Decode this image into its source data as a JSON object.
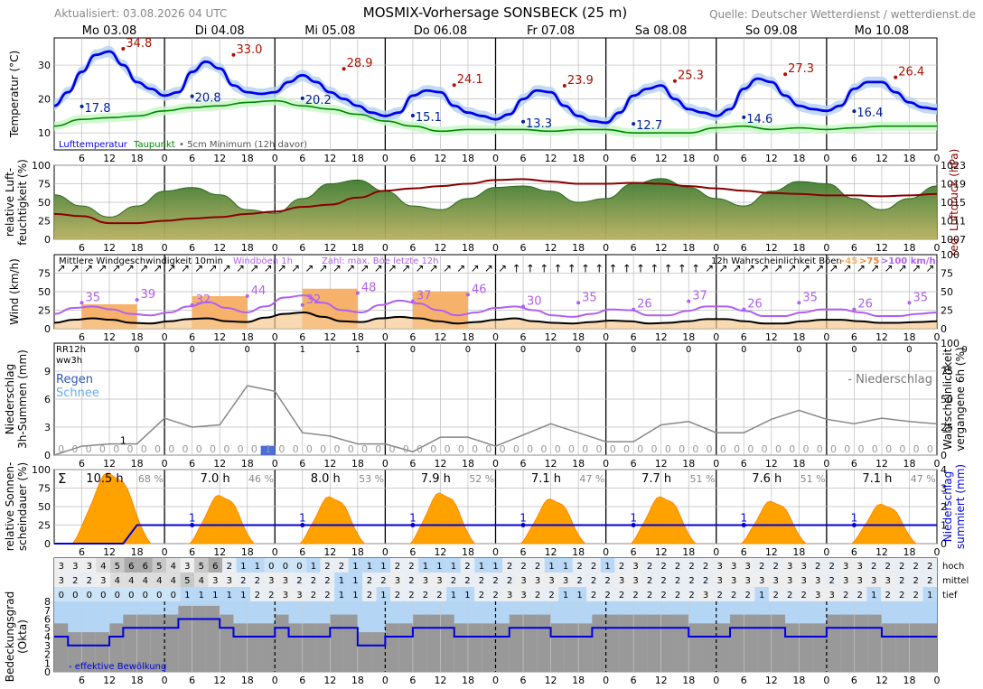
{
  "header": {
    "updated": "Aktualisiert: 03.08.2026 04 UTC",
    "title": "MOSMIX-Vorhersage SONSBECK (25 m)",
    "source": "Quelle: Deutscher Wetterdienst / wetterdienst.de"
  },
  "days": [
    "Mo 03.08",
    "Di 04.08",
    "Mi 05.08",
    "Do 06.08",
    "Fr 07.08",
    "Sa 08.08",
    "So 09.08",
    "Mo 10.08"
  ],
  "hour_ticks": [
    "6",
    "12",
    "18",
    "0"
  ],
  "colors": {
    "temperature": "#0000ee",
    "temperature_band": "#b8d4f2",
    "dewpoint": "#008800",
    "dewpoint_band": "#c8f8c8",
    "max_label": "#aa1100",
    "min_label": "#002299",
    "pressure": "#880000",
    "humidity_fill": "#6a9a3a",
    "wind_mean": "#000000",
    "gust": "#b060f0",
    "gust_max_fill": "#f6b26b",
    "precip_prob": "#888888",
    "sunshine": "#ffa200",
    "cum_precip": "#0000dd",
    "cloud_blue": "#b5d5f5",
    "cloud_gray": "#999999",
    "grid": "#bbbbbb"
  },
  "chart_data": [
    {
      "id": "temperature",
      "type": "line",
      "ylabel": "Temperatur (°C)",
      "ylim": [
        5,
        38
      ],
      "yticks": [
        10,
        20,
        30
      ],
      "legend": [
        "Lufttemperatur",
        "Taupunkt",
        "5cm Minimum (12h davor)"
      ],
      "series": [
        {
          "name": "Lufttemperatur",
          "x_hours": [
            0,
            3,
            6,
            9,
            12,
            15,
            18,
            21,
            24,
            27,
            30,
            33,
            36,
            39,
            42,
            45,
            48,
            51,
            54,
            57,
            60,
            63,
            66,
            69,
            72,
            75,
            78,
            81,
            84,
            87,
            90,
            93,
            96,
            99,
            102,
            105,
            108,
            111,
            114,
            117,
            120,
            123,
            126,
            129,
            132,
            135,
            138,
            141,
            144,
            147,
            150,
            153,
            156,
            159,
            162,
            165,
            168,
            171,
            174,
            177,
            180,
            183,
            186,
            189,
            192
          ],
          "values": [
            18,
            22,
            28,
            33,
            34,
            30,
            25,
            23,
            21,
            22,
            28,
            31,
            29,
            24,
            22,
            21.5,
            22,
            25,
            27,
            25,
            22,
            20,
            18,
            16,
            15,
            16,
            21,
            22.5,
            22,
            18,
            16,
            15,
            14,
            15.5,
            20,
            22.5,
            22,
            18,
            15,
            13.5,
            13,
            16,
            21,
            23,
            24,
            20,
            17,
            16,
            15,
            17,
            23,
            26,
            25,
            21,
            18,
            17,
            16.5,
            18,
            23,
            25,
            25,
            22,
            19,
            17.5,
            17
          ]
        },
        {
          "name": "Taupunkt",
          "x_hours": [
            0,
            6,
            12,
            18,
            24,
            30,
            36,
            42,
            48,
            54,
            60,
            66,
            72,
            78,
            84,
            90,
            96,
            102,
            108,
            114,
            120,
            126,
            132,
            138,
            144,
            150,
            156,
            162,
            168,
            174,
            180,
            186,
            192
          ],
          "values": [
            12,
            14,
            14.5,
            15,
            16.5,
            17.5,
            18,
            19,
            19.5,
            18,
            17,
            15.5,
            13.5,
            12,
            10.5,
            11,
            11,
            11,
            10.5,
            11,
            11,
            10,
            10,
            10,
            11.5,
            12,
            11,
            11.5,
            11,
            11.5,
            12,
            12,
            12
          ]
        }
      ],
      "maxima": [
        {
          "label": "34.8",
          "value": 34.8
        },
        {
          "label": "33.0",
          "value": 33.0
        },
        {
          "label": "28.9",
          "value": 28.9
        },
        {
          "label": "24.1",
          "value": 24.1
        },
        {
          "label": "23.9",
          "value": 23.9
        },
        {
          "label": "25.3",
          "value": 25.3
        },
        {
          "label": "27.3",
          "value": 27.3
        },
        {
          "label": "26.4",
          "value": 26.4
        }
      ],
      "minima": [
        {
          "label": "17.8",
          "value": 17.8
        },
        {
          "label": "20.8",
          "value": 20.8
        },
        {
          "label": "20.2",
          "value": 20.2
        },
        {
          "label": "15.1",
          "value": 15.1
        },
        {
          "label": "13.3",
          "value": 13.3
        },
        {
          "label": "12.7",
          "value": 12.7
        },
        {
          "label": "14.6",
          "value": 14.6
        },
        {
          "label": "16.4",
          "value": 16.4
        }
      ]
    },
    {
      "id": "humidity",
      "type": "area",
      "ylabel": "relative Luftfeuchtigkeit (%)",
      "ylim": [
        0,
        100
      ],
      "yticks": [
        0,
        25,
        50,
        75,
        100
      ],
      "y2label": "red. Luftdruck (hPa)",
      "y2lim": [
        1007,
        1023
      ],
      "y2ticks": [
        1007,
        1011,
        1015,
        1019,
        1023
      ],
      "series": [
        {
          "name": "relative Luftfeuchtigkeit",
          "x_step_hours": 6,
          "values": [
            60,
            45,
            30,
            45,
            65,
            70,
            60,
            40,
            35,
            55,
            75,
            80,
            65,
            45,
            40,
            55,
            70,
            72,
            65,
            50,
            55,
            75,
            82,
            70,
            55,
            45,
            65,
            78,
            75,
            55,
            40,
            55,
            72
          ]
        },
        {
          "name": "red. Luftdruck",
          "x_step_hours": 6,
          "values": [
            1012.5,
            1012,
            1010.5,
            1010.5,
            1011,
            1011.5,
            1011.8,
            1012.5,
            1013,
            1014,
            1014.5,
            1016,
            1017.5,
            1018,
            1018.5,
            1019,
            1019.8,
            1020,
            1019.5,
            1019,
            1019,
            1019.2,
            1019,
            1018.5,
            1018,
            1017.5,
            1017,
            1016.8,
            1016.5,
            1016.5,
            1016.3,
            1016.5,
            1016.8
          ]
        }
      ]
    },
    {
      "id": "wind",
      "type": "line",
      "ylabel": "Wind (km/h)",
      "ylim": [
        0,
        100
      ],
      "yticks": [
        0,
        25,
        50,
        75
      ],
      "y2ticks": [
        0,
        25,
        50,
        75,
        100
      ],
      "legend_mean": "Mittlere Windgeschwindigkeit 10min",
      "legend_gust": "Windböen 1h",
      "legend_max": "Zahl: max. Böe letzte 12h",
      "legend_prob": "12h Wahrscheinlichkeit Böen",
      "prob_thresholds": [
        ">45",
        ">75",
        ">100 km/h"
      ],
      "mean_values": [
        8,
        12,
        14,
        12,
        8,
        7,
        10,
        13,
        14,
        10,
        9,
        15,
        20,
        22,
        16,
        10,
        9,
        14,
        16,
        14,
        10,
        7,
        9,
        12,
        14,
        10,
        8,
        7,
        9,
        11,
        10,
        7,
        8,
        10,
        13,
        13,
        10,
        7,
        7,
        10,
        12,
        12,
        10,
        8,
        8,
        9,
        10
      ],
      "gust_values": [
        20,
        28,
        30,
        26,
        20,
        18,
        22,
        30,
        36,
        28,
        22,
        30,
        42,
        45,
        35,
        25,
        22,
        32,
        38,
        34,
        25,
        18,
        22,
        28,
        30,
        25,
        18,
        16,
        20,
        26,
        25,
        18,
        18,
        24,
        30,
        30,
        24,
        17,
        17,
        22,
        26,
        26,
        22,
        17,
        17,
        20,
        22
      ],
      "max_gusts": [
        {
          "label": "35",
          "value": 35
        },
        {
          "label": "39",
          "value": 39
        },
        {
          "label": "32",
          "value": 32
        },
        {
          "label": "44",
          "value": 44
        },
        {
          "label": "32",
          "value": 32
        },
        {
          "label": "48",
          "value": 48
        },
        {
          "label": "37",
          "value": 37
        },
        {
          "label": "46",
          "value": 46
        },
        {
          "label": "30",
          "value": 30
        },
        {
          "label": "35",
          "value": 35
        },
        {
          "label": "26",
          "value": 26
        },
        {
          "label": "37",
          "value": 37
        },
        {
          "label": "26",
          "value": 26
        },
        {
          "label": "35",
          "value": 35
        },
        {
          "label": "26",
          "value": 26
        },
        {
          "label": "35",
          "value": 35
        }
      ],
      "gust_blocks": [
        {
          "start_h": 6,
          "end_h": 18,
          "value": 33
        },
        {
          "start_h": 30,
          "end_h": 42,
          "value": 44
        },
        {
          "start_h": 54,
          "end_h": 66,
          "value": 54
        },
        {
          "start_h": 78,
          "end_h": 90,
          "value": 50
        }
      ]
    },
    {
      "id": "precipitation",
      "type": "bar",
      "ylabel": "Niederschlag 3h-Summen (mm)",
      "ylim": [
        0,
        12
      ],
      "yticks": [
        0,
        3,
        6,
        9
      ],
      "y2label": "Wahrscheinlichkeit vergangene 6h (%)",
      "y2ticks": [
        0,
        25,
        50,
        75,
        100
      ],
      "rr12h_label": "RR12h",
      "ww3h_label": "ww3h",
      "legend_rain": "Regen",
      "legend_snow": "Schnee",
      "legend_prob": "- Niederschlag",
      "rr12h": [
        "0",
        "0",
        "0",
        "1",
        "1",
        "0",
        "0",
        "0",
        "0",
        "0",
        "0",
        "0",
        "0",
        "0",
        "0",
        "0"
      ],
      "amounts_3h": [
        0,
        0,
        0,
        0,
        0,
        0,
        0,
        0,
        0,
        0,
        0,
        0,
        0,
        0,
        0,
        1,
        0,
        0,
        0,
        0,
        0,
        0,
        0,
        0,
        0,
        0,
        0,
        0,
        0,
        0,
        0,
        0,
        0,
        0,
        0,
        0,
        0,
        0,
        0,
        0,
        0,
        0,
        0,
        0,
        0,
        0,
        0,
        0,
        0,
        0,
        0,
        0,
        0,
        0,
        0,
        0,
        0,
        0,
        0,
        0,
        0,
        0,
        0,
        0,
        0
      ],
      "bar_labels": [
        {
          "label": "1",
          "x_hour": 15,
          "value": 1
        }
      ],
      "probability_6h": [
        0,
        8,
        10,
        10,
        33,
        25,
        27,
        62,
        57,
        20,
        17,
        10,
        10,
        3,
        16,
        16,
        8,
        18,
        28,
        20,
        12,
        12,
        27,
        30,
        20,
        20,
        32,
        40,
        32,
        28,
        33,
        30,
        28
      ]
    },
    {
      "id": "sunshine",
      "type": "area",
      "ylabel": "relative Sonnenscheindauer (%)",
      "ylim": [
        0,
        100
      ],
      "yticks": [
        0,
        25,
        50,
        75,
        100
      ],
      "y2label": "Niederschlag summiert (mm)",
      "y2lim": [
        0,
        4
      ],
      "y2ticks": [
        0,
        1,
        2,
        3,
        4
      ],
      "days": [
        {
          "hours": "10.5 h",
          "pct": "68 %",
          "peak": 95
        },
        {
          "hours": "7.0 h",
          "pct": "46 %",
          "peak": 65
        },
        {
          "hours": "8.0 h",
          "pct": "53 %",
          "peak": 63
        },
        {
          "hours": "7.9 h",
          "pct": "52 %",
          "peak": 68
        },
        {
          "hours": "7.1 h",
          "pct": "47 %",
          "peak": 60
        },
        {
          "hours": "7.7 h",
          "pct": "51 %",
          "peak": 63
        },
        {
          "hours": "7.6 h",
          "pct": "51 %",
          "peak": 57
        },
        {
          "hours": "7.1 h",
          "pct": "47 %",
          "peak": 53
        }
      ],
      "cum_precip_label": "1",
      "cum_precip_step_hour": 15,
      "cum_precip_total": 1
    },
    {
      "id": "cloud_cover",
      "type": "table",
      "ylabel": "Bedeckungsgrad (Okta)",
      "ylim": [
        0,
        8
      ],
      "yticks": [
        0,
        1,
        2,
        3,
        4,
        5,
        6,
        7,
        8
      ],
      "row_labels": [
        "hoch",
        "mittel",
        "tief"
      ],
      "legend_effective": "- effektive Bewölkung",
      "high": [
        "3",
        "3",
        "3",
        "4",
        "5",
        "6",
        "6",
        "5",
        "4",
        "3",
        "5",
        "6",
        "2",
        "1",
        "1",
        "0",
        "0",
        "0",
        "1",
        "2",
        "2",
        "1",
        "1",
        "1",
        "2",
        "2",
        "1",
        "1",
        "1",
        "2",
        "1",
        "1",
        "2",
        "2",
        "2",
        "1",
        "1",
        "2",
        "2",
        "1",
        "2",
        "3",
        "2",
        "2",
        "2",
        "2",
        "2",
        "3",
        "3",
        "3",
        "2",
        "2",
        "3",
        "3",
        "2",
        "2",
        "3",
        "3",
        "2",
        "2",
        "2",
        "2",
        "2"
      ],
      "middle": [
        "3",
        "2",
        "2",
        "3",
        "4",
        "4",
        "4",
        "4",
        "4",
        "5",
        "4",
        "3",
        "3",
        "2",
        "2",
        "3",
        "3",
        "2",
        "2",
        "2",
        "1",
        "1",
        "2",
        "2",
        "3",
        "2",
        "3",
        "3",
        "2",
        "2",
        "2",
        "2",
        "2",
        "3",
        "3",
        "3",
        "3",
        "2",
        "2",
        "2",
        "3",
        "3",
        "2",
        "2",
        "2",
        "2",
        "2",
        "3",
        "3",
        "3",
        "3",
        "3",
        "3",
        "3",
        "3",
        "2",
        "3",
        "3",
        "3",
        "3",
        "2",
        "2",
        "2"
      ],
      "low": [
        "0",
        "0",
        "0",
        "0",
        "0",
        "0",
        "0",
        "0",
        "0",
        "1",
        "1",
        "1",
        "1",
        "1",
        "2",
        "2",
        "3",
        "3",
        "2",
        "2",
        "1",
        "1",
        "2",
        "1",
        "2",
        "2",
        "2",
        "2",
        "1",
        "1",
        "2",
        "2",
        "3",
        "3",
        "2",
        "2",
        "1",
        "1",
        "2",
        "2",
        "2",
        "2",
        "2",
        "2",
        "2",
        "2",
        "3",
        "2",
        "2",
        "2",
        "1",
        "2",
        "2",
        "2",
        "3",
        "3",
        "2",
        "2",
        "1",
        "2",
        "2",
        "2",
        "1"
      ],
      "effective": [
        4,
        3,
        3,
        3,
        4,
        5,
        5,
        5,
        5,
        6,
        6,
        6,
        5,
        4,
        4,
        4,
        5,
        4,
        4,
        4,
        5,
        5,
        3,
        3,
        4,
        4,
        5,
        5,
        5,
        4,
        4,
        4,
        4,
        5,
        5,
        5,
        4,
        4,
        4,
        5,
        5,
        5,
        5,
        5,
        5,
        5,
        4,
        4,
        4,
        5,
        5,
        5,
        5,
        4,
        4,
        4,
        5,
        5,
        5,
        5,
        4,
        4,
        4,
        4
      ]
    }
  ]
}
